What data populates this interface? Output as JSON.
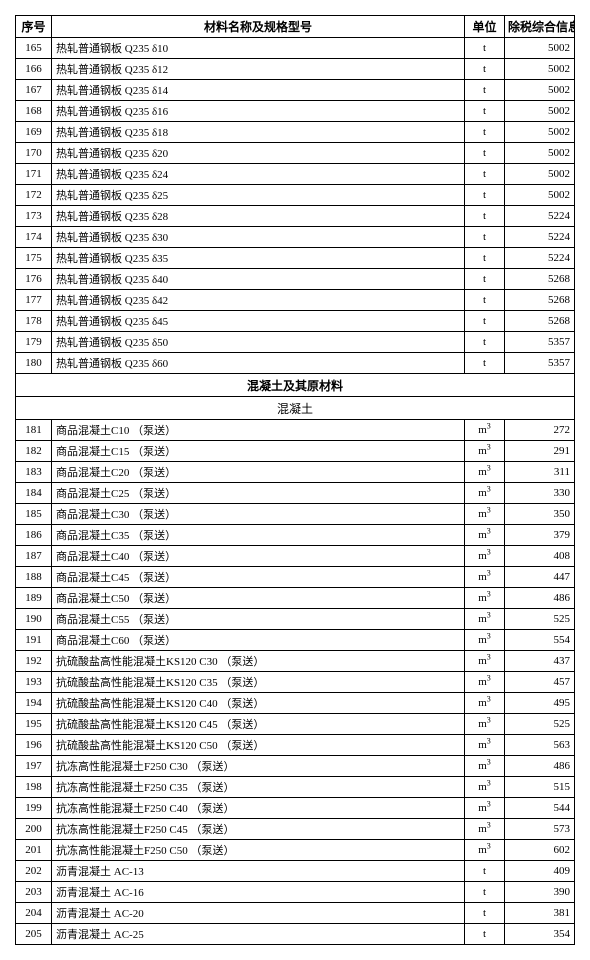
{
  "headers": {
    "seq": "序号",
    "name": "材料名称及规格型号",
    "unit": "单位",
    "price": "除税综合信息价"
  },
  "section1_rows": [
    {
      "seq": "165",
      "name": "热轧普通钢板 Q235 δ10",
      "unit": "t",
      "price": "5002"
    },
    {
      "seq": "166",
      "name": "热轧普通钢板 Q235 δ12",
      "unit": "t",
      "price": "5002"
    },
    {
      "seq": "167",
      "name": "热轧普通钢板 Q235 δ14",
      "unit": "t",
      "price": "5002"
    },
    {
      "seq": "168",
      "name": "热轧普通钢板 Q235 δ16",
      "unit": "t",
      "price": "5002"
    },
    {
      "seq": "169",
      "name": "热轧普通钢板 Q235 δ18",
      "unit": "t",
      "price": "5002"
    },
    {
      "seq": "170",
      "name": "热轧普通钢板 Q235 δ20",
      "unit": "t",
      "price": "5002"
    },
    {
      "seq": "171",
      "name": "热轧普通钢板 Q235 δ24",
      "unit": "t",
      "price": "5002"
    },
    {
      "seq": "172",
      "name": "热轧普通钢板 Q235 δ25",
      "unit": "t",
      "price": "5002"
    },
    {
      "seq": "173",
      "name": "热轧普通钢板 Q235 δ28",
      "unit": "t",
      "price": "5224"
    },
    {
      "seq": "174",
      "name": "热轧普通钢板 Q235 δ30",
      "unit": "t",
      "price": "5224"
    },
    {
      "seq": "175",
      "name": "热轧普通钢板 Q235 δ35",
      "unit": "t",
      "price": "5224"
    },
    {
      "seq": "176",
      "name": "热轧普通钢板 Q235 δ40",
      "unit": "t",
      "price": "5268"
    },
    {
      "seq": "177",
      "name": "热轧普通钢板 Q235 δ42",
      "unit": "t",
      "price": "5268"
    },
    {
      "seq": "178",
      "name": "热轧普通钢板 Q235 δ45",
      "unit": "t",
      "price": "5268"
    },
    {
      "seq": "179",
      "name": "热轧普通钢板 Q235 δ50",
      "unit": "t",
      "price": "5357"
    },
    {
      "seq": "180",
      "name": "热轧普通钢板 Q235 δ60",
      "unit": "t",
      "price": "5357"
    }
  ],
  "section2_title": "混凝土及其原材料",
  "section2_sub": "混凝土",
  "section2_rows": [
    {
      "seq": "181",
      "name": "商品混凝土C10 （泵送）",
      "unit": "m3",
      "price": "272"
    },
    {
      "seq": "182",
      "name": "商品混凝土C15 （泵送）",
      "unit": "m3",
      "price": "291"
    },
    {
      "seq": "183",
      "name": "商品混凝土C20 （泵送）",
      "unit": "m3",
      "price": "311"
    },
    {
      "seq": "184",
      "name": "商品混凝土C25 （泵送）",
      "unit": "m3",
      "price": "330"
    },
    {
      "seq": "185",
      "name": "商品混凝土C30 （泵送）",
      "unit": "m3",
      "price": "350"
    },
    {
      "seq": "186",
      "name": "商品混凝土C35 （泵送）",
      "unit": "m3",
      "price": "379"
    },
    {
      "seq": "187",
      "name": "商品混凝土C40 （泵送）",
      "unit": "m3",
      "price": "408"
    },
    {
      "seq": "188",
      "name": "商品混凝土C45 （泵送）",
      "unit": "m3",
      "price": "447"
    },
    {
      "seq": "189",
      "name": "商品混凝土C50 （泵送）",
      "unit": "m3",
      "price": "486"
    },
    {
      "seq": "190",
      "name": "商品混凝土C55 （泵送）",
      "unit": "m3",
      "price": "525"
    },
    {
      "seq": "191",
      "name": "商品混凝土C60 （泵送）",
      "unit": "m3",
      "price": "554"
    },
    {
      "seq": "192",
      "name": "抗硫酸盐高性能混凝土KS120 C30 （泵送）",
      "unit": "m3",
      "price": "437"
    },
    {
      "seq": "193",
      "name": "抗硫酸盐高性能混凝土KS120 C35 （泵送）",
      "unit": "m3",
      "price": "457"
    },
    {
      "seq": "194",
      "name": "抗硫酸盐高性能混凝土KS120 C40 （泵送）",
      "unit": "m3",
      "price": "495"
    },
    {
      "seq": "195",
      "name": "抗硫酸盐高性能混凝土KS120 C45 （泵送）",
      "unit": "m3",
      "price": "525"
    },
    {
      "seq": "196",
      "name": "抗硫酸盐高性能混凝土KS120 C50 （泵送）",
      "unit": "m3",
      "price": "563"
    },
    {
      "seq": "197",
      "name": "抗冻高性能混凝土F250 C30 （泵送）",
      "unit": "m3",
      "price": "486"
    },
    {
      "seq": "198",
      "name": "抗冻高性能混凝土F250 C35 （泵送）",
      "unit": "m3",
      "price": "515"
    },
    {
      "seq": "199",
      "name": "抗冻高性能混凝土F250 C40 （泵送）",
      "unit": "m3",
      "price": "544"
    },
    {
      "seq": "200",
      "name": "抗冻高性能混凝土F250 C45 （泵送）",
      "unit": "m3",
      "price": "573"
    },
    {
      "seq": "201",
      "name": "抗冻高性能混凝土F250 C50 （泵送）",
      "unit": "m3",
      "price": "602"
    },
    {
      "seq": "202",
      "name": "沥青混凝土  AC-13",
      "unit": "t",
      "price": "409"
    },
    {
      "seq": "203",
      "name": "沥青混凝土  AC-16",
      "unit": "t",
      "price": "390"
    },
    {
      "seq": "204",
      "name": "沥青混凝土  AC-20",
      "unit": "t",
      "price": "381"
    },
    {
      "seq": "205",
      "name": "沥青混凝土  AC-25",
      "unit": "t",
      "price": "354"
    }
  ]
}
